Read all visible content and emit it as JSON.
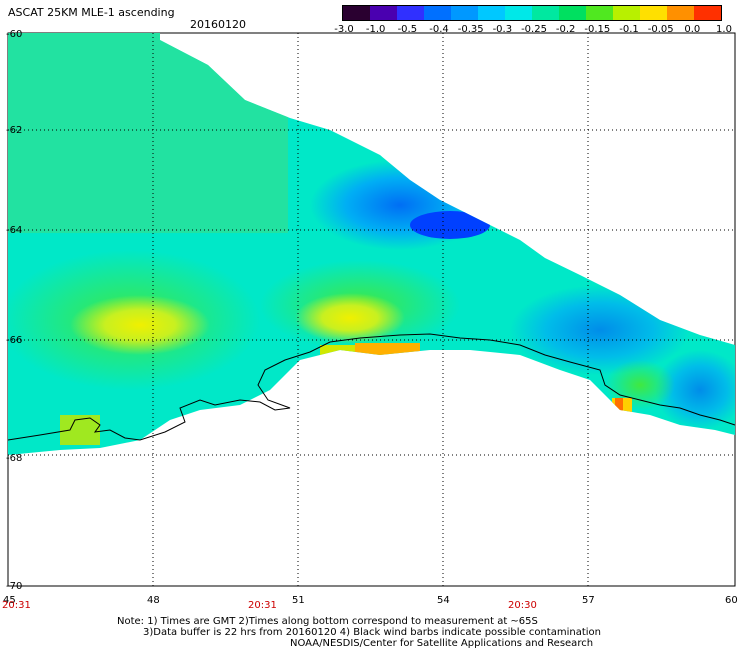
{
  "header": {
    "title": "ASCAT 25KM MLE-1 ascending",
    "date": "20160120"
  },
  "colorbar": {
    "labels": [
      "-3.0",
      "-1.0",
      "-0.5",
      "-0.4",
      "-0.35",
      "-0.3",
      "-0.25",
      "-0.2",
      "-0.15",
      "-0.1",
      "-0.05",
      "0.0",
      "1.0"
    ],
    "colors": [
      "#2a0030",
      "#4a00b0",
      "#3030ff",
      "#0070ff",
      "#0098ff",
      "#00c8ff",
      "#00e8e8",
      "#00e8a0",
      "#00e060",
      "#50e820",
      "#b8f000",
      "#ffe000",
      "#ff9000",
      "#ff3000"
    ]
  },
  "axes": {
    "lat_labels": [
      "-60",
      "-62",
      "-64",
      "-66",
      "-68",
      "-70"
    ],
    "lon_labels": [
      "45",
      "48",
      "51",
      "54",
      "57",
      "60"
    ],
    "time_labels": [
      "20:31",
      "20:31",
      "20:30"
    ]
  },
  "notes": {
    "line1": "Note: 1) Times are GMT 2)Times along bottom correspond to measurement at ~65S",
    "line2": "3)Data buffer is 22 hrs from 20160120 4) Black wind barbs indicate possible contamination",
    "line3": "NOAA/NESDIS/Center for Satellite Applications and Research"
  }
}
